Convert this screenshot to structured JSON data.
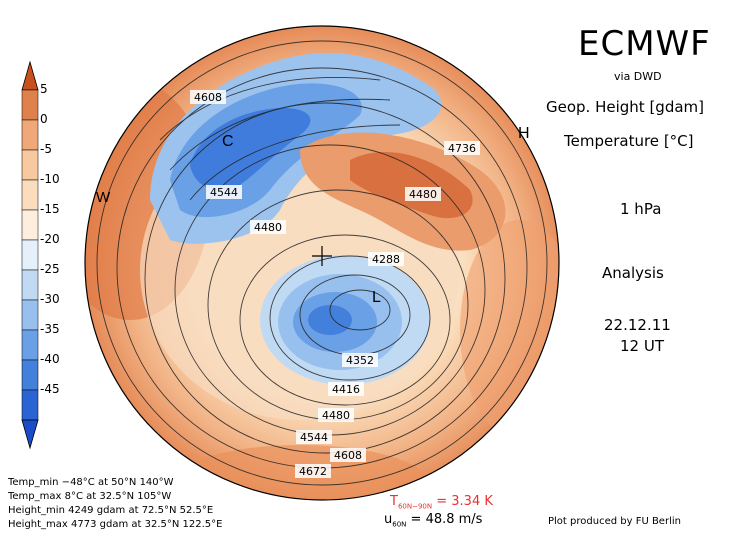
{
  "header": {
    "brand": "ECMWF",
    "source": "via DWD",
    "geop_label": "Geop. Height",
    "geop_unit": "[gdam]",
    "temp_label": "Temperature",
    "temp_unit": "[°C]",
    "level": "1 hPa",
    "kind": "Analysis",
    "date": "22.12.11",
    "time": "12 UT"
  },
  "colorbar": {
    "ticks": [
      "5",
      "0",
      "-5",
      "-10",
      "-15",
      "-20",
      "-25",
      "-30",
      "-35",
      "-40",
      "-45"
    ],
    "colors": [
      "#c8501e",
      "#e0804a",
      "#f0a878",
      "#f8d0a8",
      "#fde8cc",
      "#e6f0fa",
      "#c0daf4",
      "#98c0ee",
      "#6aa0e6",
      "#4280dc",
      "#2a64d2",
      "#1a4cc8"
    ]
  },
  "pressure_systems": [
    {
      "letter": "H",
      "kind": "high"
    },
    {
      "letter": "W",
      "kind": "warm"
    },
    {
      "letter": "C",
      "kind": "cold"
    },
    {
      "letter": "L",
      "kind": "low"
    }
  ],
  "contour_labels": [
    "4608",
    "4544",
    "4480",
    "4736",
    "4480",
    "4288",
    "4352",
    "4416",
    "4480",
    "4544",
    "4608",
    "4672"
  ],
  "stats": [
    "Temp_min −48°C at 50°N 140°W",
    "Temp_max 8°C at 32.5°N 105°W",
    "Height_min 4249 gdam at 72.5°N 52.5°E",
    "Height_max 4773 gdam at 32.5°N 122.5°E"
  ],
  "diagnostics": {
    "t_prefix": "T",
    "t_sub": "60N−90N",
    "t_value": " = 3.34 K",
    "u_prefix": "u",
    "u_sub": "60N",
    "u_value": " = 48.8 m/s"
  },
  "credit": "Plot produced by FU Berlin"
}
